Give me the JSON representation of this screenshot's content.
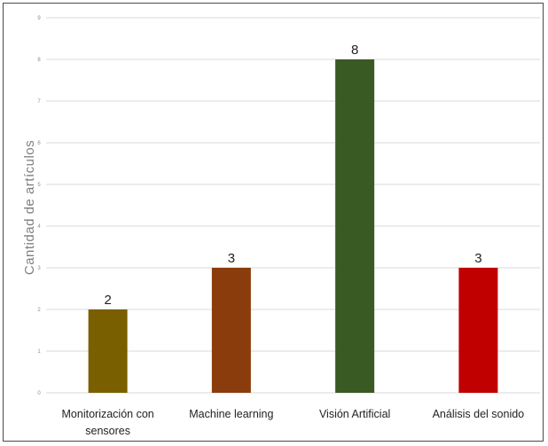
{
  "chart_data": {
    "type": "bar",
    "title": "",
    "xlabel": "",
    "ylabel": "Cantidad de artículos",
    "categories": [
      [
        "Monitorización con",
        "sensores"
      ],
      [
        "Machine learning"
      ],
      [
        "Visión Artificial"
      ],
      [
        "Análisis del sonido"
      ]
    ],
    "values": [
      2,
      3,
      8,
      3
    ],
    "colors": [
      "#7a5f00",
      "#8a3c0c",
      "#3a5a23",
      "#c00000"
    ],
    "ylim": [
      0,
      9
    ],
    "yticks": [
      0,
      1,
      2,
      3,
      4,
      5,
      6,
      7,
      8,
      9
    ],
    "grid": true,
    "legend": false
  }
}
